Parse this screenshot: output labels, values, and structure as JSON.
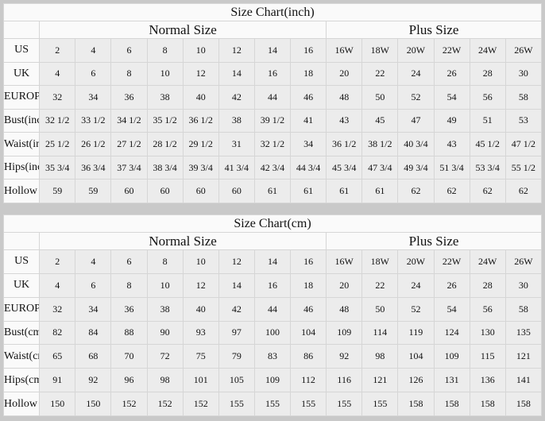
{
  "tables": [
    {
      "title": "Size Chart(inch)",
      "groups": [
        "Normal Size",
        "Plus Size"
      ],
      "rows": [
        {
          "label": "US",
          "values": [
            "2",
            "4",
            "6",
            "8",
            "10",
            "12",
            "14",
            "16",
            "16W",
            "18W",
            "20W",
            "22W",
            "24W",
            "26W"
          ]
        },
        {
          "label": "UK",
          "values": [
            "4",
            "6",
            "8",
            "10",
            "12",
            "14",
            "16",
            "18",
            "20",
            "22",
            "24",
            "26",
            "28",
            "30"
          ]
        },
        {
          "label": "EUROPE",
          "values": [
            "32",
            "34",
            "36",
            "38",
            "40",
            "42",
            "44",
            "46",
            "48",
            "50",
            "52",
            "54",
            "56",
            "58"
          ]
        },
        {
          "label": "Bust(inch)",
          "values": [
            "32 1/2",
            "33 1/2",
            "34 1/2",
            "35 1/2",
            "36 1/2",
            "38",
            "39 1/2",
            "41",
            "43",
            "45",
            "47",
            "49",
            "51",
            "53"
          ]
        },
        {
          "label": "Waist(inch)",
          "values": [
            "25 1/2",
            "26 1/2",
            "27 1/2",
            "28 1/2",
            "29 1/2",
            "31",
            "32 1/2",
            "34",
            "36 1/2",
            "38 1/2",
            "40 3/4",
            "43",
            "45 1/2",
            "47 1/2"
          ]
        },
        {
          "label": "Hips(inch)",
          "values": [
            "35 3/4",
            "36 3/4",
            "37 3/4",
            "38 3/4",
            "39 3/4",
            "41 3/4",
            "42 3/4",
            "44 3/4",
            "45 3/4",
            "47 3/4",
            "49 3/4",
            "51 3/4",
            "53 3/4",
            "55 1/2"
          ]
        },
        {
          "label": "Hollow to Floor(inch)",
          "values": [
            "59",
            "59",
            "60",
            "60",
            "60",
            "60",
            "61",
            "61",
            "61",
            "61",
            "62",
            "62",
            "62",
            "62"
          ]
        }
      ]
    },
    {
      "title": "Size Chart(cm)",
      "groups": [
        "Normal Size",
        "Plus Size"
      ],
      "rows": [
        {
          "label": "US",
          "values": [
            "2",
            "4",
            "6",
            "8",
            "10",
            "12",
            "14",
            "16",
            "16W",
            "18W",
            "20W",
            "22W",
            "24W",
            "26W"
          ]
        },
        {
          "label": "UK",
          "values": [
            "4",
            "6",
            "8",
            "10",
            "12",
            "14",
            "16",
            "18",
            "20",
            "22",
            "24",
            "26",
            "28",
            "30"
          ]
        },
        {
          "label": "EUROPE",
          "values": [
            "32",
            "34",
            "36",
            "38",
            "40",
            "42",
            "44",
            "46",
            "48",
            "50",
            "52",
            "54",
            "56",
            "58"
          ]
        },
        {
          "label": "Bust(cm)",
          "values": [
            "82",
            "84",
            "88",
            "90",
            "93",
            "97",
            "100",
            "104",
            "109",
            "114",
            "119",
            "124",
            "130",
            "135"
          ]
        },
        {
          "label": "Waist(cm)",
          "values": [
            "65",
            "68",
            "70",
            "72",
            "75",
            "79",
            "83",
            "86",
            "92",
            "98",
            "104",
            "109",
            "115",
            "121"
          ]
        },
        {
          "label": "Hips(cm)",
          "values": [
            "91",
            "92",
            "96",
            "98",
            "101",
            "105",
            "109",
            "112",
            "116",
            "121",
            "126",
            "131",
            "136",
            "141"
          ]
        },
        {
          "label": "Hollow to Floor(cm)",
          "values": [
            "150",
            "150",
            "152",
            "152",
            "152",
            "155",
            "155",
            "155",
            "155",
            "155",
            "158",
            "158",
            "158",
            "158"
          ]
        }
      ]
    }
  ]
}
